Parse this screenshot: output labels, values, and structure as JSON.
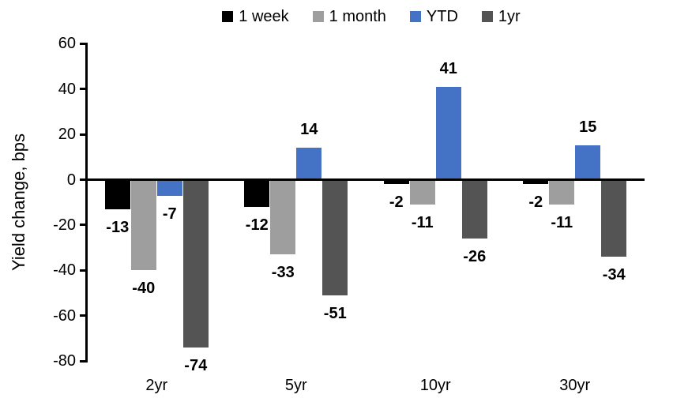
{
  "chart_data": {
    "type": "bar",
    "title": "",
    "ylabel": "Yield change, bps",
    "xlabel": "",
    "categories": [
      "2yr",
      "5yr",
      "10yr",
      "30yr"
    ],
    "series": [
      {
        "name": "1 week",
        "color": "#000000",
        "values": [
          -13,
          -12,
          -2,
          -2
        ]
      },
      {
        "name": "1 month",
        "color": "#9E9E9E",
        "values": [
          -40,
          -33,
          -11,
          -11
        ]
      },
      {
        "name": "YTD",
        "color": "#4472C4",
        "values": [
          -7,
          14,
          41,
          15
        ]
      },
      {
        "name": "1yr",
        "color": "#545454",
        "values": [
          -74,
          -51,
          -26,
          -34
        ]
      }
    ],
    "ylim": [
      -80,
      60
    ],
    "yticks": [
      60,
      40,
      20,
      0,
      -20,
      -40,
      -60,
      -80
    ],
    "grid": false,
    "legend_position": "top",
    "data_labels": "outside-end",
    "axis_color": "#000000",
    "background_color": "#ffffff"
  }
}
